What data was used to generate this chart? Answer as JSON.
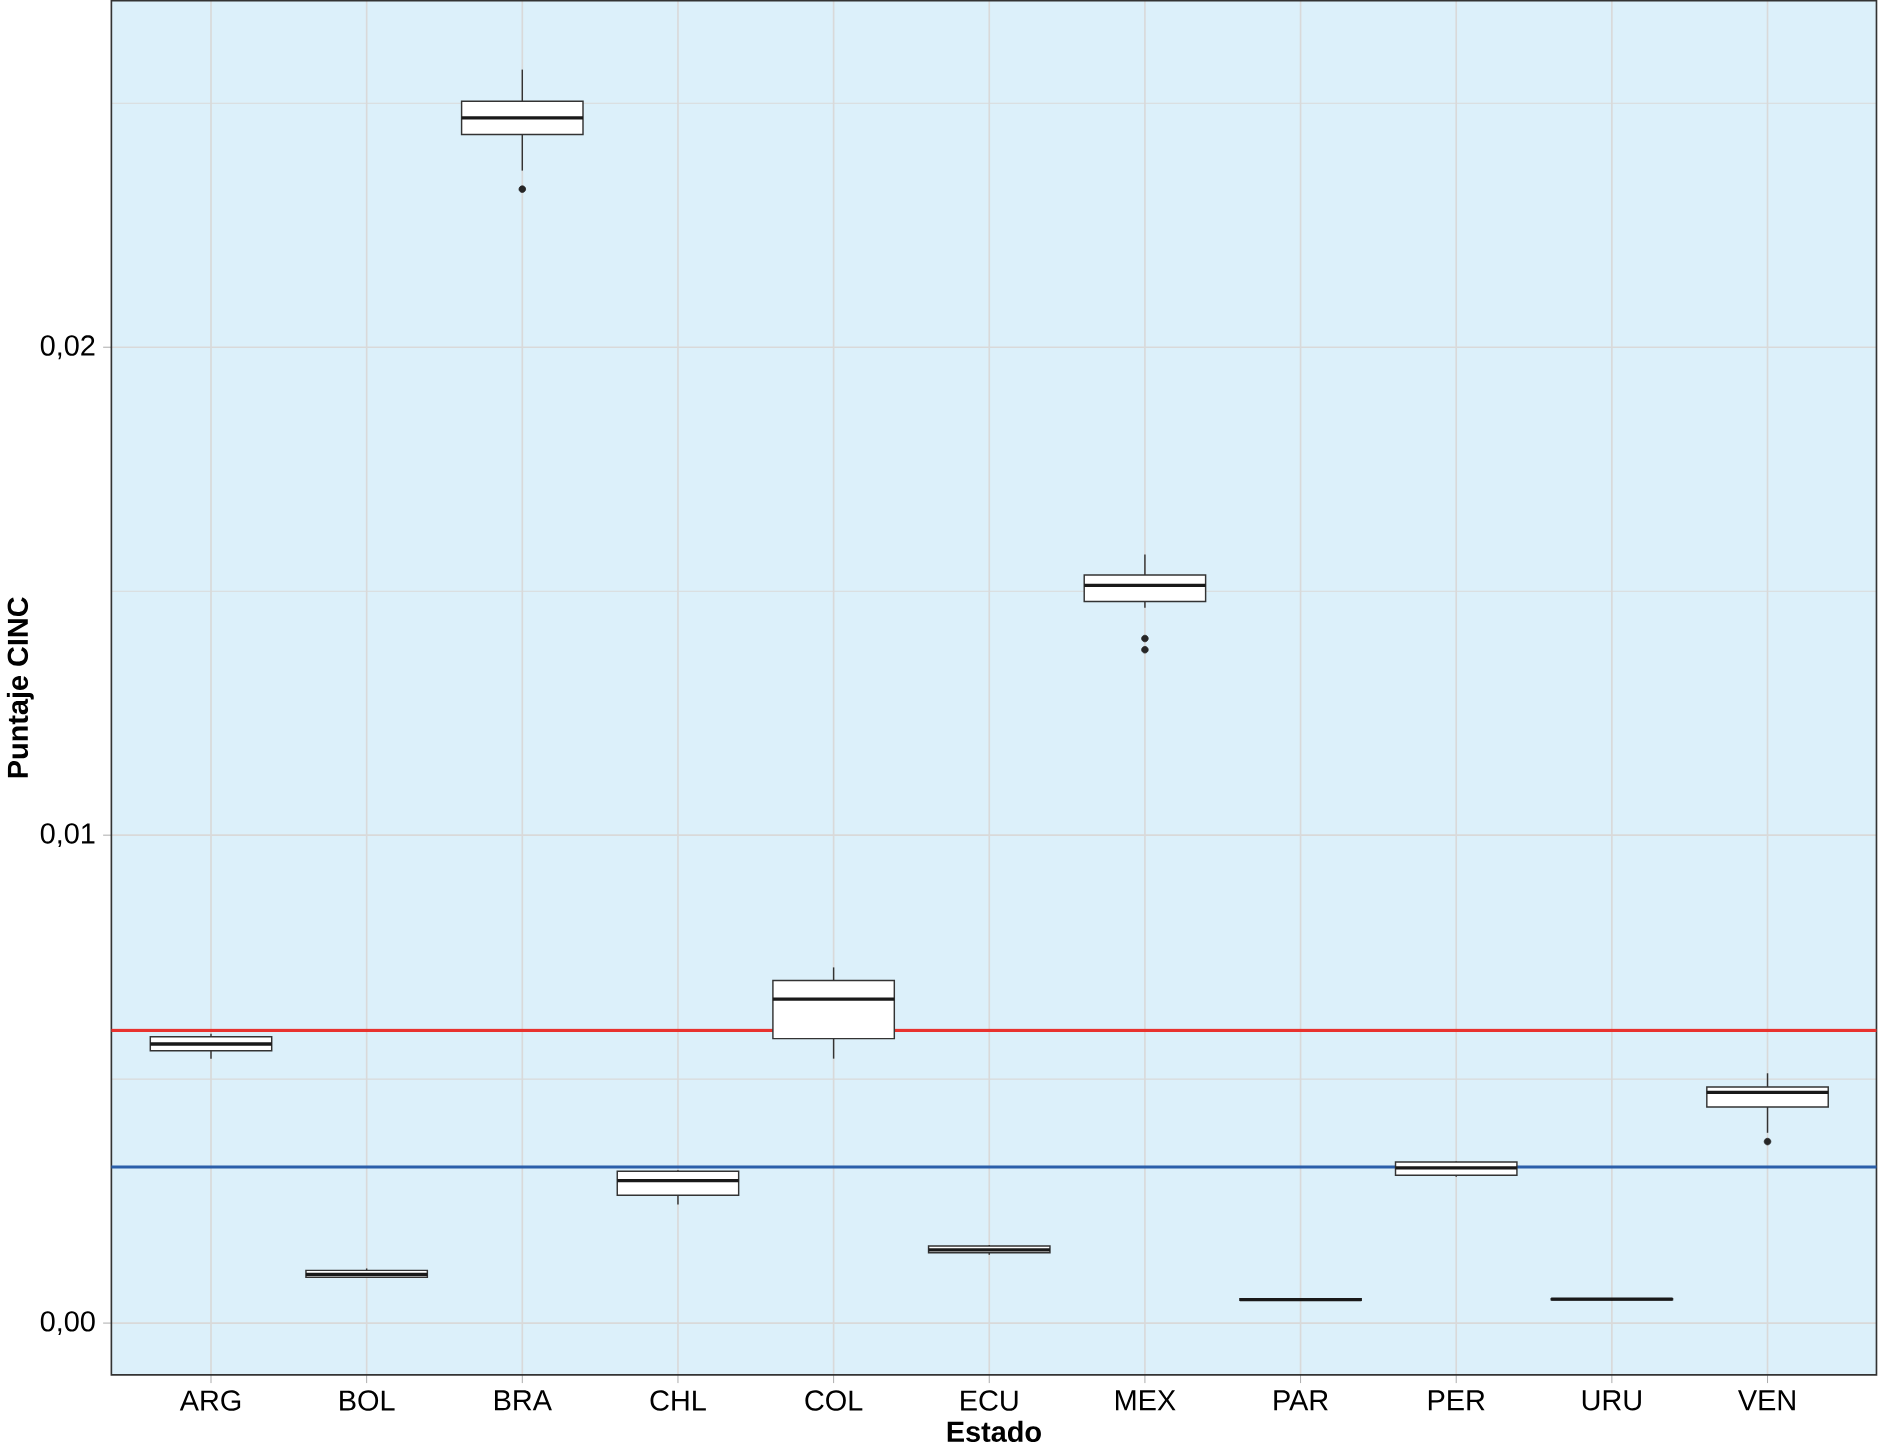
{
  "chart_data": {
    "type": "box",
    "xlabel": "Estado",
    "ylabel": "Puntaje CINC",
    "categories": [
      "ARG",
      "BOL",
      "BRA",
      "CHL",
      "COL",
      "ECU",
      "MEX",
      "PAR",
      "PER",
      "URU",
      "VEN"
    ],
    "boxes": [
      {
        "low": 0.00542,
        "q1": 0.00558,
        "median": 0.00572,
        "q3": 0.00587,
        "high": 0.00593
      },
      {
        "low": 0.00093,
        "q1": 0.00094,
        "median": 0.001,
        "q3": 0.00108,
        "high": 0.00112
      },
      {
        "low": 0.02362,
        "q1": 0.02436,
        "median": 0.0247,
        "q3": 0.02504,
        "high": 0.02569,
        "outliers": [
          0.02324
        ]
      },
      {
        "low": 0.00243,
        "q1": 0.00262,
        "median": 0.00292,
        "q3": 0.00311,
        "high": 0.00313
      },
      {
        "low": 0.00542,
        "q1": 0.00583,
        "median": 0.00664,
        "q3": 0.00702,
        "high": 0.00729
      },
      {
        "low": 0.0014,
        "q1": 0.00144,
        "median": 0.0015,
        "q3": 0.00158,
        "high": 0.0016
      },
      {
        "low": 0.01466,
        "q1": 0.01479,
        "median": 0.01512,
        "q3": 0.01533,
        "high": 0.01575,
        "outliers": [
          0.01403,
          0.0138
        ]
      },
      {
        "low": 0.00046,
        "q1": 0.00047,
        "median": 0.00048,
        "q3": 0.0005,
        "high": 0.0005
      },
      {
        "low": 0.003,
        "q1": 0.00303,
        "median": 0.00318,
        "q3": 0.0033,
        "high": 0.00331
      },
      {
        "low": 0.00047,
        "q1": 0.00048,
        "median": 0.00049,
        "q3": 0.0005,
        "high": 0.00051
      },
      {
        "low": 0.0039,
        "q1": 0.00443,
        "median": 0.00473,
        "q3": 0.00484,
        "high": 0.00512,
        "outliers": [
          0.00372
        ]
      }
    ],
    "ylim": [
      -0.00106,
      0.0271
    ],
    "yticks": [
      {
        "value": 0,
        "label": "0,00"
      },
      {
        "value": 0.005,
        "label": null
      },
      {
        "value": 0.01,
        "label": "0,01"
      },
      {
        "value": 0.015,
        "label": null
      },
      {
        "value": 0.02,
        "label": "0,02"
      },
      {
        "value": 0.025,
        "label": null
      }
    ],
    "grid": true,
    "ref_lines": [
      {
        "axis": "y",
        "value": 0.006,
        "color": "#e8322e"
      },
      {
        "axis": "y",
        "value": 0.0032,
        "color": "#2b5faa"
      }
    ]
  }
}
